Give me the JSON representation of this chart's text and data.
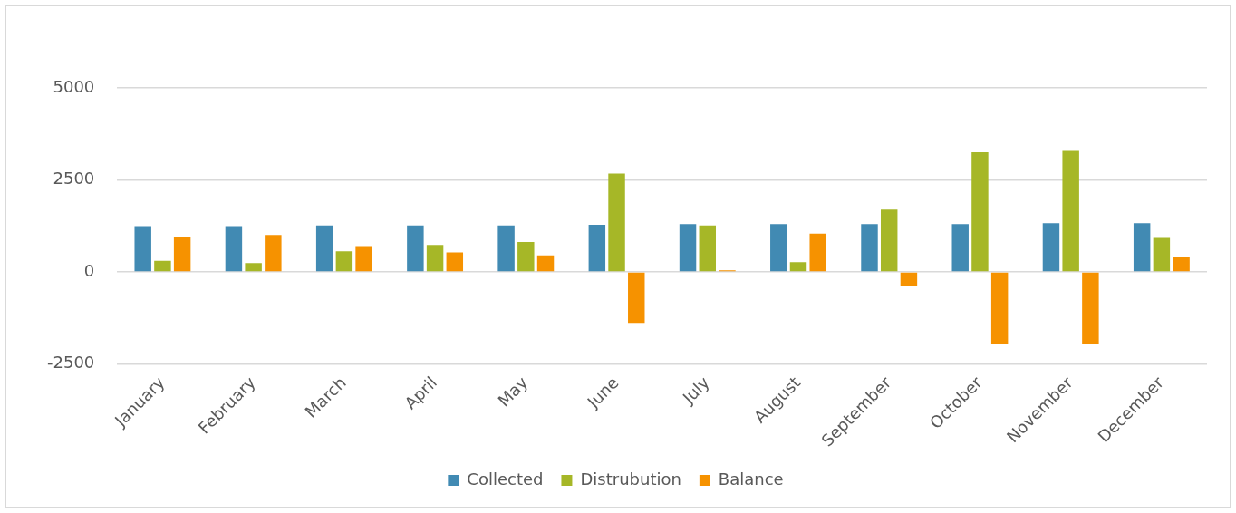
{
  "chart_data": {
    "type": "bar",
    "categories": [
      "January",
      "February",
      "March",
      "April",
      "May",
      "June",
      "July",
      "August",
      "September",
      "October",
      "November",
      "December"
    ],
    "series": [
      {
        "name": "Collected",
        "color": "#418ab3",
        "values": [
          1240,
          1240,
          1260,
          1260,
          1260,
          1280,
          1300,
          1300,
          1300,
          1300,
          1320,
          1320
        ]
      },
      {
        "name": "Distrubution",
        "color": "#a6b727",
        "values": [
          300,
          240,
          560,
          730,
          810,
          2670,
          1260,
          260,
          1690,
          3250,
          3290,
          920
        ]
      },
      {
        "name": "Balance",
        "color": "#f69200",
        "values": [
          940,
          1000,
          700,
          530,
          450,
          -1390,
          40,
          1040,
          -390,
          -1950,
          -1970,
          400
        ]
      }
    ],
    "ylim": [
      -2500,
      5000
    ],
    "yticks": [
      -2500,
      0,
      2500,
      5000
    ],
    "grid": "y",
    "legend": "bottom"
  }
}
